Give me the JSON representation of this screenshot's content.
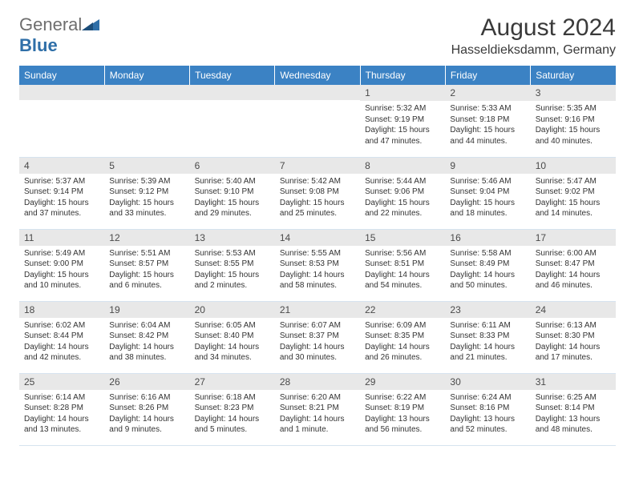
{
  "logo": {
    "text_part1": "General",
    "text_part2": "Blue",
    "color_gray": "#6e6e6e",
    "color_blue": "#2f6fa8",
    "icon_color": "#2f6fa8"
  },
  "header": {
    "month_title": "August 2024",
    "location": "Hasseldieksdamm, Germany"
  },
  "styling": {
    "header_bg": "#3b82c4",
    "header_fg": "#ffffff",
    "daynum_bg": "#e8e8e8",
    "row_border": "#d6e3ef",
    "text_color": "#333333"
  },
  "weekdays": [
    "Sunday",
    "Monday",
    "Tuesday",
    "Wednesday",
    "Thursday",
    "Friday",
    "Saturday"
  ],
  "weeks": [
    [
      {
        "empty": true
      },
      {
        "empty": true
      },
      {
        "empty": true
      },
      {
        "empty": true
      },
      {
        "num": "1",
        "sunrise": "Sunrise: 5:32 AM",
        "sunset": "Sunset: 9:19 PM",
        "daylight": "Daylight: 15 hours and 47 minutes."
      },
      {
        "num": "2",
        "sunrise": "Sunrise: 5:33 AM",
        "sunset": "Sunset: 9:18 PM",
        "daylight": "Daylight: 15 hours and 44 minutes."
      },
      {
        "num": "3",
        "sunrise": "Sunrise: 5:35 AM",
        "sunset": "Sunset: 9:16 PM",
        "daylight": "Daylight: 15 hours and 40 minutes."
      }
    ],
    [
      {
        "num": "4",
        "sunrise": "Sunrise: 5:37 AM",
        "sunset": "Sunset: 9:14 PM",
        "daylight": "Daylight: 15 hours and 37 minutes."
      },
      {
        "num": "5",
        "sunrise": "Sunrise: 5:39 AM",
        "sunset": "Sunset: 9:12 PM",
        "daylight": "Daylight: 15 hours and 33 minutes."
      },
      {
        "num": "6",
        "sunrise": "Sunrise: 5:40 AM",
        "sunset": "Sunset: 9:10 PM",
        "daylight": "Daylight: 15 hours and 29 minutes."
      },
      {
        "num": "7",
        "sunrise": "Sunrise: 5:42 AM",
        "sunset": "Sunset: 9:08 PM",
        "daylight": "Daylight: 15 hours and 25 minutes."
      },
      {
        "num": "8",
        "sunrise": "Sunrise: 5:44 AM",
        "sunset": "Sunset: 9:06 PM",
        "daylight": "Daylight: 15 hours and 22 minutes."
      },
      {
        "num": "9",
        "sunrise": "Sunrise: 5:46 AM",
        "sunset": "Sunset: 9:04 PM",
        "daylight": "Daylight: 15 hours and 18 minutes."
      },
      {
        "num": "10",
        "sunrise": "Sunrise: 5:47 AM",
        "sunset": "Sunset: 9:02 PM",
        "daylight": "Daylight: 15 hours and 14 minutes."
      }
    ],
    [
      {
        "num": "11",
        "sunrise": "Sunrise: 5:49 AM",
        "sunset": "Sunset: 9:00 PM",
        "daylight": "Daylight: 15 hours and 10 minutes."
      },
      {
        "num": "12",
        "sunrise": "Sunrise: 5:51 AM",
        "sunset": "Sunset: 8:57 PM",
        "daylight": "Daylight: 15 hours and 6 minutes."
      },
      {
        "num": "13",
        "sunrise": "Sunrise: 5:53 AM",
        "sunset": "Sunset: 8:55 PM",
        "daylight": "Daylight: 15 hours and 2 minutes."
      },
      {
        "num": "14",
        "sunrise": "Sunrise: 5:55 AM",
        "sunset": "Sunset: 8:53 PM",
        "daylight": "Daylight: 14 hours and 58 minutes."
      },
      {
        "num": "15",
        "sunrise": "Sunrise: 5:56 AM",
        "sunset": "Sunset: 8:51 PM",
        "daylight": "Daylight: 14 hours and 54 minutes."
      },
      {
        "num": "16",
        "sunrise": "Sunrise: 5:58 AM",
        "sunset": "Sunset: 8:49 PM",
        "daylight": "Daylight: 14 hours and 50 minutes."
      },
      {
        "num": "17",
        "sunrise": "Sunrise: 6:00 AM",
        "sunset": "Sunset: 8:47 PM",
        "daylight": "Daylight: 14 hours and 46 minutes."
      }
    ],
    [
      {
        "num": "18",
        "sunrise": "Sunrise: 6:02 AM",
        "sunset": "Sunset: 8:44 PM",
        "daylight": "Daylight: 14 hours and 42 minutes."
      },
      {
        "num": "19",
        "sunrise": "Sunrise: 6:04 AM",
        "sunset": "Sunset: 8:42 PM",
        "daylight": "Daylight: 14 hours and 38 minutes."
      },
      {
        "num": "20",
        "sunrise": "Sunrise: 6:05 AM",
        "sunset": "Sunset: 8:40 PM",
        "daylight": "Daylight: 14 hours and 34 minutes."
      },
      {
        "num": "21",
        "sunrise": "Sunrise: 6:07 AM",
        "sunset": "Sunset: 8:37 PM",
        "daylight": "Daylight: 14 hours and 30 minutes."
      },
      {
        "num": "22",
        "sunrise": "Sunrise: 6:09 AM",
        "sunset": "Sunset: 8:35 PM",
        "daylight": "Daylight: 14 hours and 26 minutes."
      },
      {
        "num": "23",
        "sunrise": "Sunrise: 6:11 AM",
        "sunset": "Sunset: 8:33 PM",
        "daylight": "Daylight: 14 hours and 21 minutes."
      },
      {
        "num": "24",
        "sunrise": "Sunrise: 6:13 AM",
        "sunset": "Sunset: 8:30 PM",
        "daylight": "Daylight: 14 hours and 17 minutes."
      }
    ],
    [
      {
        "num": "25",
        "sunrise": "Sunrise: 6:14 AM",
        "sunset": "Sunset: 8:28 PM",
        "daylight": "Daylight: 14 hours and 13 minutes."
      },
      {
        "num": "26",
        "sunrise": "Sunrise: 6:16 AM",
        "sunset": "Sunset: 8:26 PM",
        "daylight": "Daylight: 14 hours and 9 minutes."
      },
      {
        "num": "27",
        "sunrise": "Sunrise: 6:18 AM",
        "sunset": "Sunset: 8:23 PM",
        "daylight": "Daylight: 14 hours and 5 minutes."
      },
      {
        "num": "28",
        "sunrise": "Sunrise: 6:20 AM",
        "sunset": "Sunset: 8:21 PM",
        "daylight": "Daylight: 14 hours and 1 minute."
      },
      {
        "num": "29",
        "sunrise": "Sunrise: 6:22 AM",
        "sunset": "Sunset: 8:19 PM",
        "daylight": "Daylight: 13 hours and 56 minutes."
      },
      {
        "num": "30",
        "sunrise": "Sunrise: 6:24 AM",
        "sunset": "Sunset: 8:16 PM",
        "daylight": "Daylight: 13 hours and 52 minutes."
      },
      {
        "num": "31",
        "sunrise": "Sunrise: 6:25 AM",
        "sunset": "Sunset: 8:14 PM",
        "daylight": "Daylight: 13 hours and 48 minutes."
      }
    ]
  ]
}
